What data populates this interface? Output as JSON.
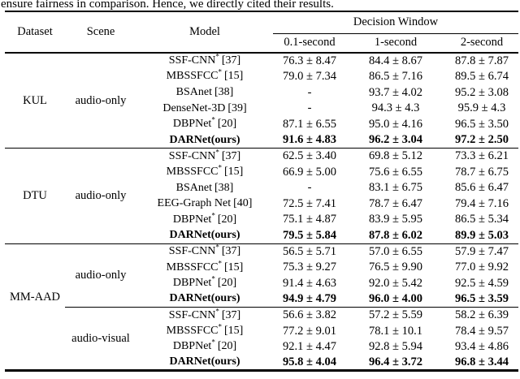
{
  "page": {
    "intro_text": "ensure fairness in comparison. Hence, we directly cited their results."
  },
  "colors": {
    "text": "#000000",
    "background": "#ffffff",
    "rule": "#000000"
  },
  "table": {
    "col_headers": {
      "dataset": "Dataset",
      "scene": "Scene",
      "model": "Model",
      "decision_window": "Decision Window",
      "windows": [
        "0.1-second",
        "1-second",
        "2-second"
      ]
    },
    "sections": [
      {
        "dataset": "KUL",
        "groups": [
          {
            "scene": "audio-only",
            "rows": [
              {
                "model": "SSF-CNN",
                "sup": "*",
                "ref": "[37]",
                "bold": false,
                "values": [
                  "76.3 ± 8.47",
                  "84.4 ± 8.67",
                  "87.8 ± 7.87"
                ]
              },
              {
                "model": "MBSSFCC",
                "sup": "*",
                "ref": "[15]",
                "bold": false,
                "values": [
                  "79.0 ± 7.34",
                  "86.5 ± 7.16",
                  "89.5 ± 6.74"
                ]
              },
              {
                "model": "BSAnet",
                "sup": "",
                "ref": "[38]",
                "bold": false,
                "values": [
                  "-",
                  "93.7 ± 4.02",
                  "95.2 ± 3.08"
                ]
              },
              {
                "model": "DenseNet-3D",
                "sup": "",
                "ref": "[39]",
                "bold": false,
                "values": [
                  "-",
                  "94.3 ± 4.3",
                  "95.9 ± 4.3"
                ]
              },
              {
                "model": "DBPNet",
                "sup": "*",
                "ref": "[20]",
                "bold": false,
                "values": [
                  "87.1 ± 6.55",
                  "95.0 ± 4.16",
                  "96.5 ± 3.50"
                ]
              },
              {
                "model": "DARNet(ours)",
                "sup": "",
                "ref": "",
                "bold": true,
                "values": [
                  "91.6 ± 4.83",
                  "96.2 ± 3.04",
                  "97.2 ± 2.50"
                ]
              }
            ]
          }
        ]
      },
      {
        "dataset": "DTU",
        "groups": [
          {
            "scene": "audio-only",
            "rows": [
              {
                "model": "SSF-CNN",
                "sup": "*",
                "ref": "[37]",
                "bold": false,
                "values": [
                  "62.5 ± 3.40",
                  "69.8 ± 5.12",
                  "73.3 ± 6.21"
                ]
              },
              {
                "model": "MBSSFCC",
                "sup": "*",
                "ref": "[15]",
                "bold": false,
                "values": [
                  "66.9 ± 5.00",
                  "75.6 ± 6.55",
                  "78.7 ± 6.75"
                ]
              },
              {
                "model": "BSAnet",
                "sup": "",
                "ref": "[38]",
                "bold": false,
                "values": [
                  "-",
                  "83.1 ± 6.75",
                  "85.6 ± 6.47"
                ]
              },
              {
                "model": "EEG-Graph Net",
                "sup": "",
                "ref": "[40]",
                "bold": false,
                "values": [
                  "72.5 ± 7.41",
                  "78.7 ± 6.47",
                  "79.4 ± 7.16"
                ]
              },
              {
                "model": "DBPNet",
                "sup": "*",
                "ref": "[20]",
                "bold": false,
                "values": [
                  "75.1 ± 4.87",
                  "83.9 ± 5.95",
                  "86.5 ± 5.34"
                ]
              },
              {
                "model": "DARNet(ours)",
                "sup": "",
                "ref": "",
                "bold": true,
                "values": [
                  "79.5 ± 5.84",
                  "87.8 ± 6.02",
                  "89.9 ± 5.03"
                ]
              }
            ]
          }
        ]
      },
      {
        "dataset": "MM-AAD",
        "groups": [
          {
            "scene": "audio-only",
            "rows": [
              {
                "model": "SSF-CNN",
                "sup": "*",
                "ref": "[37]",
                "bold": false,
                "values": [
                  "56.5 ± 5.71",
                  "57.0 ± 6.55",
                  "57.9 ± 7.47"
                ]
              },
              {
                "model": "MBSSFCC",
                "sup": "*",
                "ref": "[15]",
                "bold": false,
                "values": [
                  "75.3 ± 9.27",
                  "76.5 ± 9.90",
                  "77.0 ± 9.92"
                ]
              },
              {
                "model": "DBPNet",
                "sup": "*",
                "ref": "[20]",
                "bold": false,
                "values": [
                  "91.4 ± 4.63",
                  "92.0 ± 5.42",
                  "92.5 ± 4.59"
                ]
              },
              {
                "model": "DARNet(ours)",
                "sup": "",
                "ref": "",
                "bold": true,
                "values": [
                  "94.9 ± 4.79",
                  "96.0 ± 4.00",
                  "96.5 ± 3.59"
                ]
              }
            ]
          },
          {
            "scene": "audio-visual",
            "rows": [
              {
                "model": "SSF-CNN",
                "sup": "*",
                "ref": "[37]",
                "bold": false,
                "values": [
                  "56.6 ± 3.82",
                  "57.2 ± 5.59",
                  "58.2 ± 6.39"
                ]
              },
              {
                "model": "MBSSFCC",
                "sup": "*",
                "ref": "[15]",
                "bold": false,
                "values": [
                  "77.2 ± 9.01",
                  "78.1 ± 10.1",
                  "78.4 ± 9.57"
                ]
              },
              {
                "model": "DBPNet",
                "sup": "*",
                "ref": "[20]",
                "bold": false,
                "values": [
                  "92.1 ± 4.47",
                  "92.8 ± 5.94",
                  "93.4 ± 4.86"
                ]
              },
              {
                "model": "DARNet(ours)",
                "sup": "",
                "ref": "",
                "bold": true,
                "values": [
                  "95.8 ± 4.04",
                  "96.4 ± 3.72",
                  "96.8 ± 3.44"
                ]
              }
            ]
          }
        ]
      }
    ]
  }
}
